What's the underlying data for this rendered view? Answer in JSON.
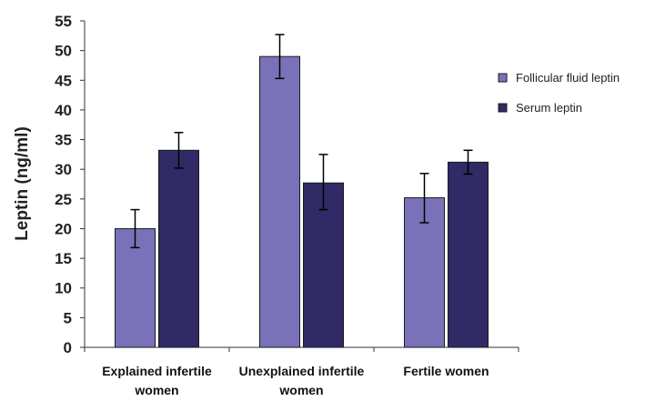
{
  "chart_data": {
    "type": "bar",
    "title": "",
    "xlabel": "",
    "ylabel": "Leptin (ng/ml)",
    "ylim": [
      0,
      55
    ],
    "yticks": [
      "0",
      "5",
      "10",
      "15",
      "20",
      "25",
      "30",
      "35",
      "40",
      "45",
      "50",
      "55"
    ],
    "categories": [
      [
        "Explained infertile",
        "women"
      ],
      [
        "Unexplained infertile",
        "women"
      ],
      [
        "Fertile women"
      ]
    ],
    "series": [
      {
        "name": "Follicular fluid leptin",
        "color": "#7a72b8",
        "values": [
          20.0,
          49.0,
          25.2
        ],
        "error_low": [
          16.8,
          45.3,
          21.0
        ],
        "error_high": [
          23.2,
          52.7,
          29.3
        ]
      },
      {
        "name": "Serum leptin",
        "color": "#302a66",
        "values": [
          33.2,
          27.7,
          31.2
        ],
        "error_low": [
          30.2,
          23.2,
          29.2
        ],
        "error_high": [
          36.2,
          32.5,
          33.2
        ]
      }
    ],
    "error_bars": true,
    "grid": false,
    "legend_position": "right"
  }
}
